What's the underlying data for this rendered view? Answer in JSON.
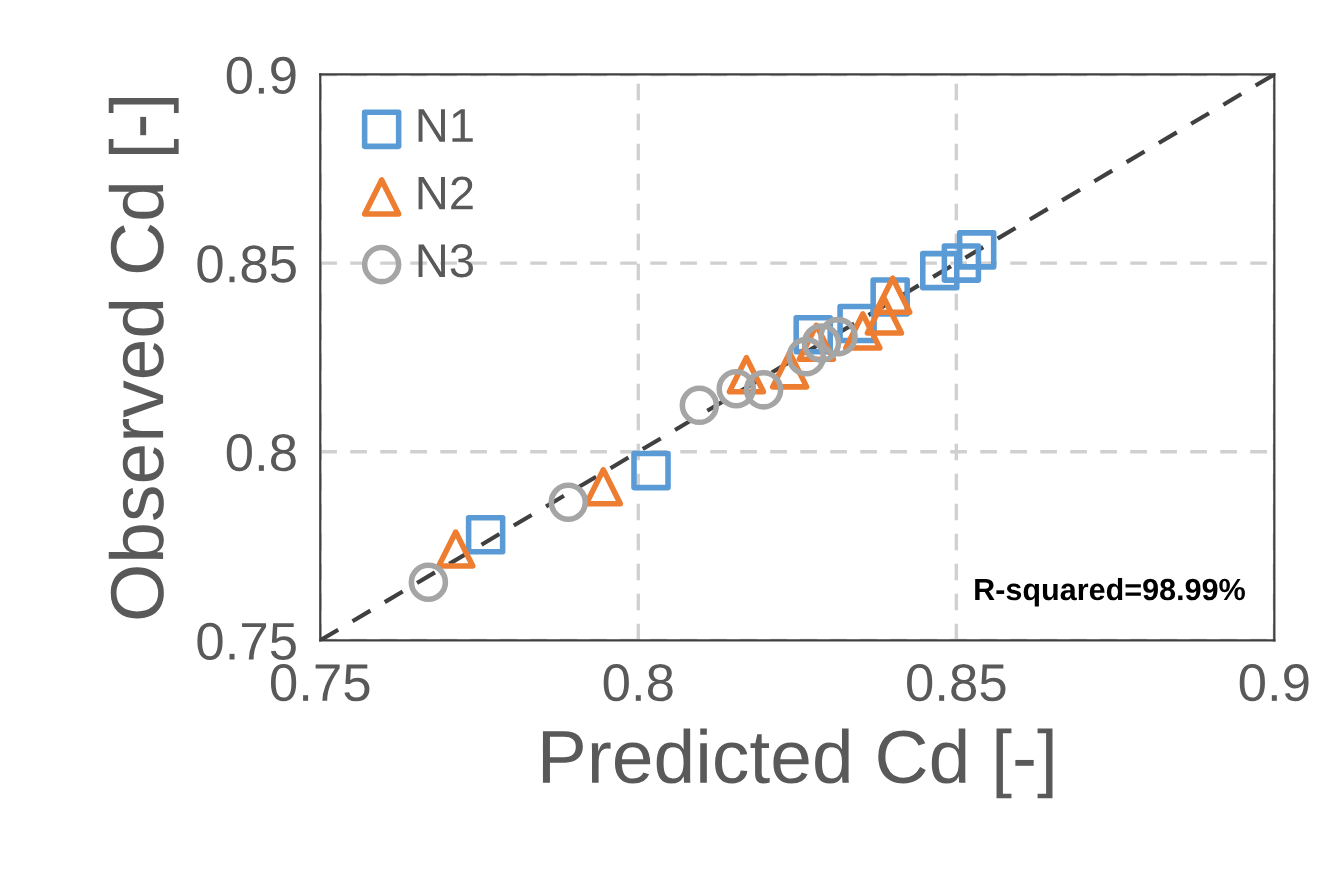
{
  "chart_data": {
    "type": "scatter",
    "xlabel": "Predicted Cd [-]",
    "ylabel": "Observed Cd [-]",
    "xlim": [
      0.75,
      0.9
    ],
    "ylim": [
      0.75,
      0.9
    ],
    "xticks": [
      0.75,
      0.8,
      0.85,
      0.9
    ],
    "yticks": [
      0.75,
      0.8,
      0.85,
      0.9
    ],
    "grid": true,
    "legend": "top left",
    "annotations": [
      "R-squared=98.99%"
    ],
    "series": [
      {
        "name": "N1",
        "color": "#5b9bd5",
        "marker": "square",
        "x": [
          0.776,
          0.802,
          0.8275,
          0.8344,
          0.8396,
          0.8474,
          0.8508,
          0.8532
        ],
        "values": [
          0.778,
          0.795,
          0.831,
          0.834,
          0.841,
          0.848,
          0.85,
          0.8535
        ]
      },
      {
        "name": "N2",
        "color": "#ed7d31",
        "marker": "triangle",
        "x": [
          0.7713,
          0.7945,
          0.817,
          0.8238,
          0.828,
          0.8353,
          0.8387,
          0.84
        ],
        "values": [
          0.7742,
          0.7907,
          0.8204,
          0.8217,
          0.829,
          0.832,
          0.836,
          0.8415
        ]
      },
      {
        "name": "N3",
        "color": "#a5a5a5",
        "marker": "circle",
        "x": [
          0.767,
          0.789,
          0.8096,
          0.8154,
          0.8197,
          0.8264,
          0.8288,
          0.8314
        ],
        "values": [
          0.7654,
          0.7866,
          0.8123,
          0.8167,
          0.8164,
          0.8252,
          0.8288,
          0.8305
        ]
      },
      {
        "type": "line",
        "color": "#404040",
        "line_style": "dashed",
        "marker": "none",
        "x": [
          0.75,
          0.9
        ],
        "values": [
          0.75,
          0.9
        ]
      }
    ]
  }
}
